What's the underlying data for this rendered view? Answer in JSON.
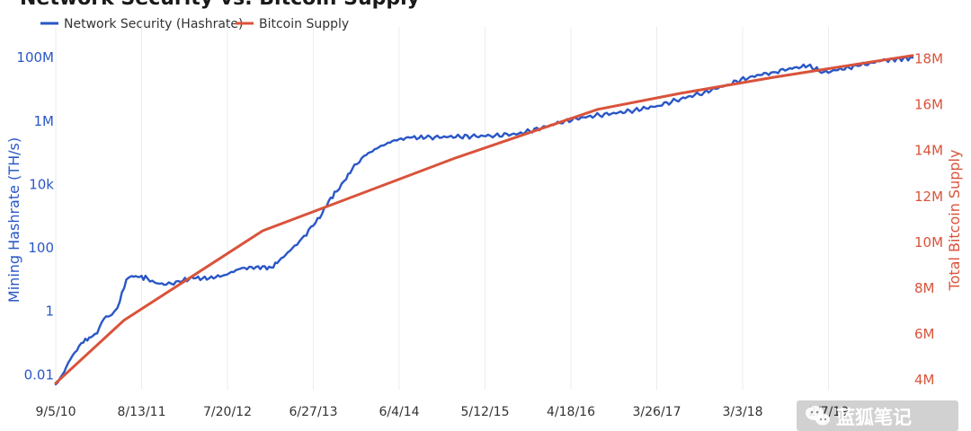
{
  "chart_data": {
    "type": "line",
    "title": "Network Security vs. Bitcoin Supply",
    "legend": {
      "placement": "top-left",
      "entries": [
        "Network Security (Hashrate)",
        "Bitcoin Supply"
      ]
    },
    "x_tick_labels": [
      "9/5/10",
      "8/13/11",
      "7/20/12",
      "6/27/13",
      "6/4/14",
      "5/12/15",
      "4/18/16",
      "3/26/17",
      "3/3/18",
      "2/7/19"
    ],
    "xlim": [
      "2010-09-05",
      "2019-12-01"
    ],
    "left_axis": {
      "label": "Mining Hashrate (TH/s)",
      "scale": "log",
      "ylim": [
        0.005,
        150000000
      ],
      "tick_values": [
        0.01,
        1,
        100,
        10000,
        1000000,
        100000000
      ],
      "tick_labels": [
        "0.01",
        "1",
        "100",
        "10k",
        "1M",
        "100M"
      ],
      "color": "#2a57c6"
    },
    "right_axis": {
      "label": "Total Bitcoin Supply",
      "scale": "linear",
      "ylim": [
        3800000,
        18300000
      ],
      "tick_values": [
        4000000,
        6000000,
        8000000,
        10000000,
        12000000,
        14000000,
        16000000,
        18000000
      ],
      "tick_labels": [
        "4M",
        "6M",
        "8M",
        "10M",
        "12M",
        "14M",
        "16M",
        "18M"
      ],
      "color": "#d9533b"
    },
    "grid": {
      "vertical": true,
      "horizontal": false
    },
    "series": [
      {
        "name": "Network Security (Hashrate)",
        "axis": "left",
        "color": "#2a57c6",
        "points": [
          [
            "2010-09-05",
            0.005
          ],
          [
            "2010-10-01",
            0.01
          ],
          [
            "2010-11-01",
            0.03
          ],
          [
            "2010-12-15",
            0.1
          ],
          [
            "2011-01-15",
            0.15
          ],
          [
            "2011-02-15",
            0.2
          ],
          [
            "2011-03-15",
            0.6
          ],
          [
            "2011-04-15",
            0.8
          ],
          [
            "2011-05-15",
            2
          ],
          [
            "2011-06-10",
            10
          ],
          [
            "2011-07-01",
            13
          ],
          [
            "2011-08-01",
            12
          ],
          [
            "2011-09-01",
            11
          ],
          [
            "2011-10-01",
            8
          ],
          [
            "2011-11-15",
            7
          ],
          [
            "2012-01-01",
            9
          ],
          [
            "2012-03-01",
            11
          ],
          [
            "2012-05-01",
            11
          ],
          [
            "2012-07-01",
            14
          ],
          [
            "2012-09-01",
            22
          ],
          [
            "2012-11-01",
            25
          ],
          [
            "2013-01-01",
            24
          ],
          [
            "2013-02-01",
            40
          ],
          [
            "2013-03-15",
            80
          ],
          [
            "2013-05-01",
            200
          ],
          [
            "2013-06-15",
            500
          ],
          [
            "2013-07-20",
            1200
          ],
          [
            "2013-08-15",
            3000
          ],
          [
            "2013-09-15",
            6000
          ],
          [
            "2013-10-15",
            13000
          ],
          [
            "2013-11-15",
            30000
          ],
          [
            "2014-01-01",
            80000
          ],
          [
            "2014-03-01",
            150000
          ],
          [
            "2014-05-01",
            250000
          ],
          [
            "2014-07-01",
            300000
          ],
          [
            "2014-09-01",
            300000
          ],
          [
            "2014-12-01",
            320000
          ],
          [
            "2015-03-01",
            330000
          ],
          [
            "2015-06-01",
            350000
          ],
          [
            "2015-09-01",
            400000
          ],
          [
            "2015-12-01",
            600000
          ],
          [
            "2016-03-01",
            1000000
          ],
          [
            "2016-06-01",
            1400000
          ],
          [
            "2016-09-01",
            1700000
          ],
          [
            "2016-12-01",
            2200000
          ],
          [
            "2017-03-01",
            3000000
          ],
          [
            "2017-06-01",
            5000000
          ],
          [
            "2017-09-01",
            8000000
          ],
          [
            "2017-12-01",
            14000000
          ],
          [
            "2018-03-01",
            25000000
          ],
          [
            "2018-06-01",
            35000000
          ],
          [
            "2018-09-01",
            50000000
          ],
          [
            "2018-10-15",
            55000000
          ],
          [
            "2018-12-15",
            35000000
          ],
          [
            "2019-02-01",
            40000000
          ],
          [
            "2019-05-01",
            55000000
          ],
          [
            "2019-08-01",
            80000000
          ],
          [
            "2019-12-01",
            100000000
          ]
        ]
      },
      {
        "name": "Bitcoin Supply",
        "axis": "right",
        "color": "#d9533b",
        "points": [
          [
            "2010-09-05",
            3850000
          ],
          [
            "2011-06-01",
            6600000
          ],
          [
            "2012-11-28",
            10500000
          ],
          [
            "2015-01-01",
            13700000
          ],
          [
            "2016-07-09",
            15800000
          ],
          [
            "2017-06-01",
            16500000
          ],
          [
            "2018-06-01",
            17200000
          ],
          [
            "2019-12-01",
            18150000
          ]
        ]
      }
    ]
  },
  "watermark": {
    "icon": "wechat-icon",
    "text": "蓝狐笔记"
  }
}
